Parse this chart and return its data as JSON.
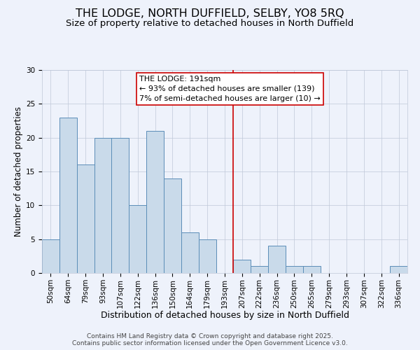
{
  "title": "THE LODGE, NORTH DUFFIELD, SELBY, YO8 5RQ",
  "subtitle": "Size of property relative to detached houses in North Duffield",
  "xlabel": "Distribution of detached houses by size in North Duffield",
  "ylabel": "Number of detached properties",
  "bar_labels": [
    "50sqm",
    "64sqm",
    "79sqm",
    "93sqm",
    "107sqm",
    "122sqm",
    "136sqm",
    "150sqm",
    "164sqm",
    "179sqm",
    "193sqm",
    "207sqm",
    "222sqm",
    "236sqm",
    "250sqm",
    "265sqm",
    "279sqm",
    "293sqm",
    "307sqm",
    "322sqm",
    "336sqm"
  ],
  "bar_values": [
    5,
    23,
    16,
    20,
    20,
    10,
    21,
    14,
    6,
    5,
    0,
    2,
    1,
    4,
    1,
    1,
    0,
    0,
    0,
    0,
    1
  ],
  "bar_color": "#c9daea",
  "bar_edge_color": "#5b8db8",
  "vline_x": 10.5,
  "vline_color": "#cc0000",
  "annotation_line1": "THE LODGE: 191sqm",
  "annotation_line2": "← 93% of detached houses are smaller (139)",
  "annotation_line3": "7% of semi-detached houses are larger (10) →",
  "ylim": [
    0,
    30
  ],
  "yticks": [
    0,
    5,
    10,
    15,
    20,
    25,
    30
  ],
  "background_color": "#eef2fb",
  "footer1": "Contains HM Land Registry data © Crown copyright and database right 2025.",
  "footer2": "Contains public sector information licensed under the Open Government Licence v3.0.",
  "title_fontsize": 11.5,
  "subtitle_fontsize": 9.5,
  "xlabel_fontsize": 9,
  "ylabel_fontsize": 8.5,
  "tick_fontsize": 7.5,
  "annotation_fontsize": 8,
  "footer_fontsize": 6.5
}
